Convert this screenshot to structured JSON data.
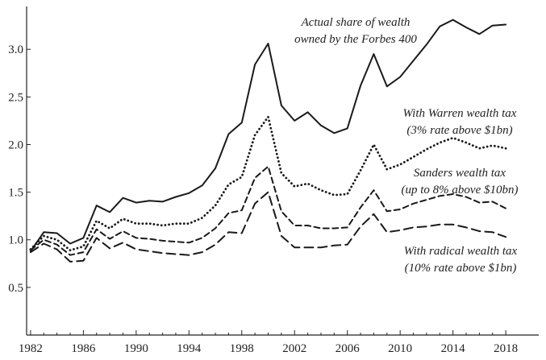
{
  "chart_data": {
    "type": "line",
    "xlim": [
      1981.7,
      2020.5
    ],
    "ylim": [
      0.0,
      3.45
    ],
    "x_ticks": [
      1982,
      1986,
      1990,
      1994,
      1998,
      2002,
      2006,
      2010,
      2014,
      2018
    ],
    "y_ticks": [
      0.5,
      1.0,
      1.5,
      2.0,
      2.5,
      3.0
    ],
    "x_tick_labels": [
      "1982",
      "1986",
      "1990",
      "1994",
      "1998",
      "2002",
      "2006",
      "2010",
      "2014",
      "2018"
    ],
    "y_tick_labels": [
      "0.5",
      "1.0",
      "1.5",
      "2.0",
      "2.5",
      "3.0"
    ],
    "x": [
      1982,
      1983,
      1984,
      1985,
      1986,
      1987,
      1988,
      1989,
      1990,
      1991,
      1992,
      1993,
      1994,
      1995,
      1996,
      1997,
      1998,
      1999,
      2000,
      2001,
      2002,
      2003,
      2004,
      2005,
      2006,
      2007,
      2008,
      2009,
      2010,
      2011,
      2012,
      2013,
      2014,
      2015,
      2016,
      2017,
      2018
    ],
    "series": [
      {
        "line_style": "solid",
        "annotation": [
          "Actual share of wealth",
          "owned by the Forbes 400"
        ],
        "values": [
          0.88,
          1.08,
          1.07,
          0.96,
          1.02,
          1.36,
          1.29,
          1.44,
          1.39,
          1.41,
          1.4,
          1.45,
          1.49,
          1.57,
          1.75,
          2.11,
          2.23,
          2.84,
          3.06,
          2.41,
          2.25,
          2.34,
          2.2,
          2.12,
          2.17,
          2.62,
          2.95,
          2.61,
          2.71,
          2.88,
          3.05,
          3.24,
          3.31,
          3.23,
          3.16,
          3.25,
          3.26
        ]
      },
      {
        "line_style": "dotted",
        "annotation": [
          "With Warren wealth tax",
          "(3% rate above $1bn)"
        ],
        "values": [
          0.9,
          1.04,
          1.0,
          0.89,
          0.93,
          1.2,
          1.12,
          1.22,
          1.17,
          1.17,
          1.15,
          1.17,
          1.17,
          1.23,
          1.36,
          1.58,
          1.66,
          2.1,
          2.29,
          1.7,
          1.56,
          1.59,
          1.52,
          1.47,
          1.48,
          1.73,
          2.0,
          1.74,
          1.79,
          1.87,
          1.95,
          2.02,
          2.07,
          2.02,
          1.96,
          1.99,
          1.96
        ]
      },
      {
        "line_style": "dashed",
        "annotation": [
          "Sanders wealth tax",
          "(up to 8% above $10bn)"
        ],
        "values": [
          0.89,
          1.0,
          0.95,
          0.84,
          0.87,
          1.11,
          1.01,
          1.09,
          1.02,
          1.01,
          0.99,
          0.98,
          0.97,
          1.02,
          1.12,
          1.28,
          1.31,
          1.65,
          1.77,
          1.3,
          1.15,
          1.15,
          1.12,
          1.12,
          1.13,
          1.34,
          1.52,
          1.3,
          1.32,
          1.38,
          1.42,
          1.46,
          1.48,
          1.45,
          1.39,
          1.4,
          1.33
        ]
      },
      {
        "line_style": "longdash",
        "annotation": [
          "With radical wealth tax",
          "(10% rate above $1bn)"
        ],
        "values": [
          0.87,
          0.96,
          0.9,
          0.77,
          0.78,
          1.02,
          0.91,
          0.97,
          0.9,
          0.88,
          0.86,
          0.85,
          0.84,
          0.87,
          0.95,
          1.08,
          1.07,
          1.38,
          1.5,
          1.04,
          0.92,
          0.92,
          0.92,
          0.94,
          0.95,
          1.14,
          1.27,
          1.08,
          1.1,
          1.13,
          1.14,
          1.16,
          1.16,
          1.13,
          1.09,
          1.08,
          1.03
        ]
      }
    ]
  }
}
